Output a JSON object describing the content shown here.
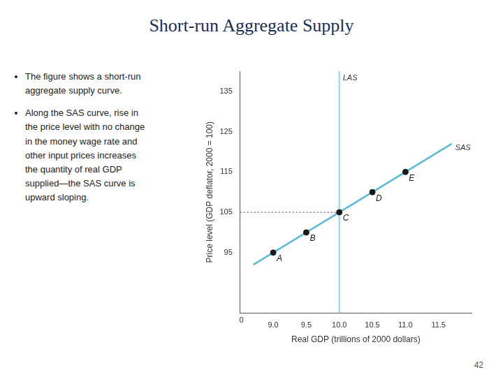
{
  "chart_data": {
    "type": "scatter",
    "title": "Short-run Aggregate Supply",
    "bullets": [
      [
        "The figure shows a short-run",
        "aggregate supply curve."
      ],
      [
        "Along the SAS curve, rise in",
        "the price level with no change",
        "in the money wage rate and",
        "other input prices increases",
        "the quantity of real GDP",
        "supplied—the SAS curve is",
        "upward sloping."
      ]
    ],
    "page_number": "42",
    "xlabel": "Real GDP (trillions of 2000 dollars)",
    "ylabel": "Price level (GDP deflator, 2000 = 100)",
    "xlim": [
      8.5,
      12.0
    ],
    "ylim": [
      80,
      140
    ],
    "xticks": [
      {
        "value": 9.0,
        "label": "9.0"
      },
      9.5,
      {
        "value": 10.0,
        "label": "10.0"
      },
      10.5,
      {
        "value": 11.0,
        "label": "11.0"
      },
      11.5
    ],
    "yticks": [
      {
        "value": 85,
        "label": ""
      },
      95,
      105,
      115,
      125,
      135
    ],
    "grid": false,
    "series": [
      {
        "name": "LAS",
        "type": "line",
        "color": "#a8d8ea",
        "marker": "none",
        "line_style": "solid",
        "x": [
          10.0,
          10.0
        ],
        "values": [
          80,
          140
        ]
      },
      {
        "name": "SAS",
        "type": "line",
        "color": "#5bbcd6",
        "marker": "none",
        "line_style": "solid",
        "x": [
          8.7,
          11.7
        ],
        "values": [
          92,
          122
        ]
      },
      {
        "type": "line",
        "color": "#666666",
        "marker": "none",
        "line_style": "dotted",
        "x": [
          8.5,
          10.0
        ],
        "values": [
          105,
          105
        ]
      },
      {
        "type": "scatter",
        "color": "#1a1a1a",
        "marker": "circle",
        "x": [
          9.0,
          9.5,
          10.0,
          10.5,
          11.0
        ],
        "values": [
          95,
          100,
          105,
          110,
          115
        ],
        "point_labels": [
          "A",
          "B",
          "C",
          "D",
          "E"
        ]
      }
    ],
    "annotations": [
      {
        "text": "0",
        "x": 8.52,
        "y": 79.5
      }
    ]
  }
}
